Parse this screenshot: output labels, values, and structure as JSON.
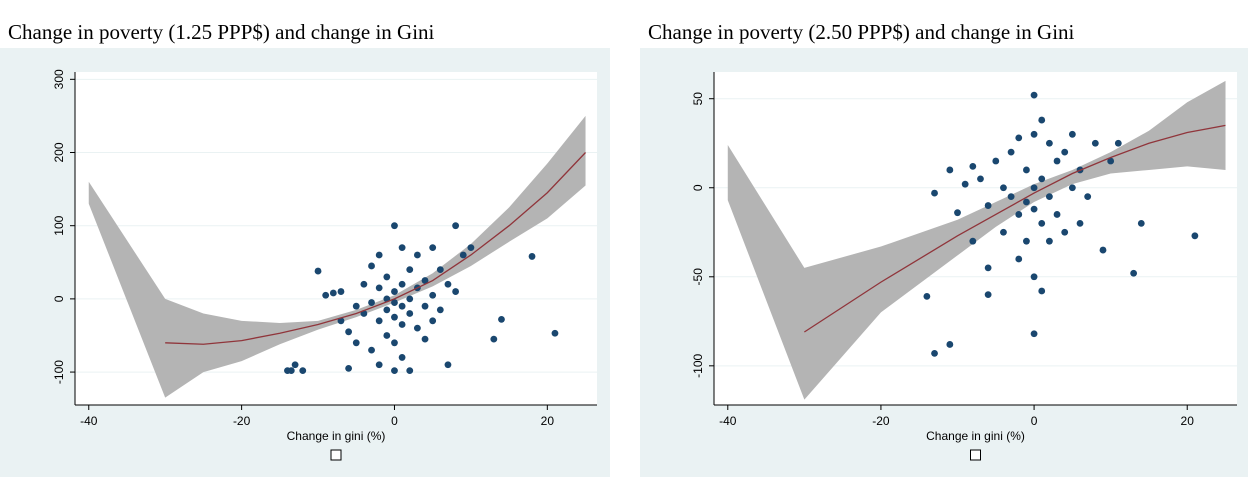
{
  "chart_data": [
    {
      "type": "scatter",
      "title": "Change in poverty (1.25 PPP$) and change in Gini",
      "xlabel": "Change in gini (%)",
      "xlim": [
        -41.8,
        26.5
      ],
      "ylim": [
        -145,
        310
      ],
      "xticks": [
        -40,
        -20,
        0,
        20
      ],
      "yticks": [
        -100,
        0,
        100,
        200,
        300
      ],
      "grid": true,
      "points": {
        "color": "#1a476f",
        "x": [
          -14,
          -13.5,
          -12,
          -13,
          -10,
          -9,
          -8,
          -7,
          -7,
          -6,
          -6,
          -5,
          -5,
          -4,
          -4,
          -3,
          -3,
          -3,
          -2,
          -2,
          -2,
          -2,
          -1,
          -1,
          -1,
          -1,
          0,
          0,
          0,
          0,
          0,
          0,
          1,
          1,
          1,
          1,
          1,
          2,
          2,
          2,
          2,
          3,
          3,
          3,
          4,
          4,
          4,
          5,
          5,
          5,
          6,
          6,
          7,
          7,
          8,
          8,
          9,
          10,
          13,
          14,
          18,
          21
        ],
        "y": [
          -98,
          -98,
          -98,
          -90,
          38,
          5,
          8,
          10,
          -30,
          -45,
          -95,
          -60,
          -10,
          20,
          -20,
          45,
          -5,
          -70,
          60,
          15,
          -30,
          -90,
          30,
          0,
          -15,
          -50,
          100,
          10,
          -5,
          -25,
          -60,
          -98,
          70,
          20,
          -10,
          -35,
          -80,
          40,
          0,
          -20,
          -98,
          60,
          15,
          -40,
          25,
          -10,
          -55,
          70,
          5,
          -30,
          40,
          -15,
          -90,
          20,
          100,
          10,
          60,
          70,
          -55,
          -28,
          58,
          -47
        ]
      },
      "fit": {
        "color": "#90353b",
        "x": [
          -30,
          -25,
          -20,
          -15,
          -10,
          -5,
          0,
          5,
          10,
          15,
          20,
          25
        ],
        "y": [
          -60,
          -62,
          -57,
          -47,
          -35,
          -20,
          0,
          25,
          60,
          100,
          145,
          200
        ]
      },
      "band": {
        "color": "#b4b4b4",
        "x": [
          -40,
          -30,
          -25,
          -20,
          -15,
          -10,
          -5,
          0,
          5,
          10,
          15,
          20,
          25
        ],
        "upper": [
          160,
          0,
          -20,
          -30,
          -33,
          -30,
          -15,
          5,
          35,
          75,
          125,
          185,
          250
        ],
        "lower": [
          130,
          -135,
          -100,
          -85,
          -62,
          -42,
          -25,
          -5,
          17,
          45,
          78,
          110,
          155
        ]
      }
    },
    {
      "type": "scatter",
      "title": "Change in poverty (2.50 PPP$) and change in Gini",
      "xlabel": "Change in gini (%)",
      "xlim": [
        -41.8,
        26.5
      ],
      "ylim": [
        -122,
        65
      ],
      "xticks": [
        -40,
        -20,
        0,
        20
      ],
      "yticks": [
        -100,
        -50,
        0,
        50
      ],
      "grid": true,
      "points": {
        "color": "#1a476f",
        "x": [
          -14,
          -13,
          -11,
          -13,
          -11,
          -10,
          -9,
          -8,
          -8,
          -7,
          -6,
          -6,
          -6,
          -5,
          -4,
          -4,
          -3,
          -3,
          -2,
          -2,
          -2,
          -1,
          -1,
          -1,
          0,
          0,
          0,
          0,
          0,
          0,
          1,
          1,
          1,
          1,
          2,
          2,
          2,
          3,
          3,
          4,
          4,
          5,
          5,
          6,
          6,
          7,
          8,
          9,
          10,
          11,
          13,
          14,
          21
        ],
        "y": [
          -61,
          -93,
          -88,
          -3,
          10,
          -14,
          2,
          12,
          -30,
          5,
          -60,
          -45,
          -10,
          15,
          -25,
          0,
          20,
          -5,
          28,
          -15,
          -40,
          10,
          -8,
          -30,
          52,
          30,
          0,
          -12,
          -50,
          -82,
          38,
          5,
          -20,
          -58,
          25,
          -5,
          -30,
          15,
          -15,
          20,
          -25,
          30,
          0,
          10,
          -20,
          -5,
          25,
          -35,
          15,
          25,
          -48,
          -20,
          -27
        ]
      },
      "fit": {
        "color": "#90353b",
        "x": [
          -30,
          -20,
          -10,
          -5,
          0,
          5,
          10,
          15,
          20,
          25
        ],
        "y": [
          -81,
          -53,
          -27,
          -15,
          -3,
          8,
          17,
          25,
          31,
          35
        ]
      },
      "band": {
        "color": "#b4b4b4",
        "x": [
          -40,
          -30,
          -20,
          -10,
          -5,
          0,
          5,
          10,
          15,
          20,
          25
        ],
        "upper": [
          24,
          -45,
          -33,
          -18,
          -8,
          2,
          10,
          20,
          32,
          48,
          60
        ],
        "lower": [
          -7,
          -119,
          -70,
          -38,
          -22,
          -8,
          2,
          8,
          10,
          12,
          10
        ]
      }
    }
  ]
}
